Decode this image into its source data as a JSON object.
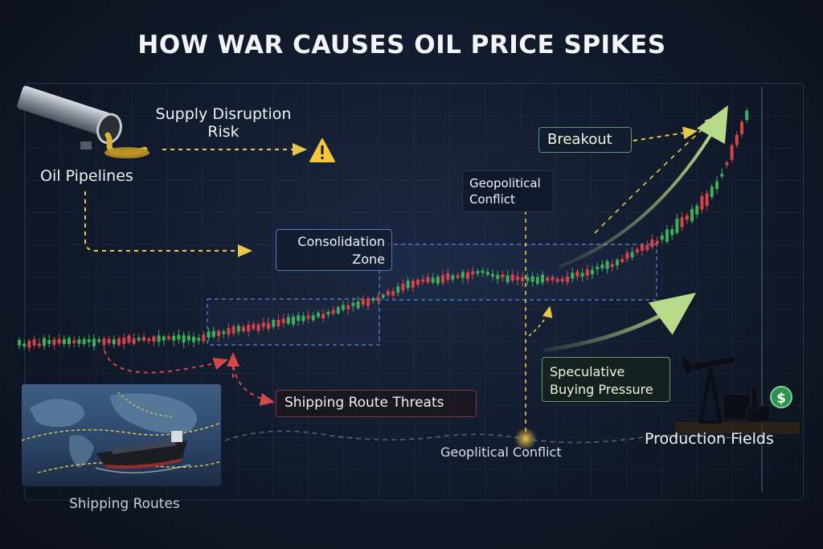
{
  "title": "HOW WAR CAUSES OIL PRICE SPIKES",
  "labels": {
    "supply_disruption": "Supply Disruption\nRisk",
    "oil_pipelines": "Oil Pipelines",
    "breakout": "Breakout",
    "geopolitical_conflict_top": "Geopolitical\nConflict",
    "consolidation_zone": "Consolidation\nZone",
    "speculative_buying": "Speculative\nBuying Pressure",
    "shipping_route_threats": "Shipping Route Threats",
    "geopolitical_conflict_bottom": "Geoplitical Conflict",
    "production_fields": "Production Fields",
    "shipping_routes": "Shipping Routes"
  },
  "icons": {
    "warning": "warning-icon",
    "pipeline": "oil-pipeline-icon",
    "pumpjack": "oil-pumpjack-icon",
    "dollar": "dollar-coin-icon",
    "ship": "tanker-ship-icon",
    "map": "world-map-icon"
  },
  "colors": {
    "bullish": "#3fae5a",
    "bearish": "#d6434b",
    "dashed_yellow": "#e8c84a",
    "dashed_red": "#d4474a",
    "dashed_blue": "#5b86d6",
    "trend_arrow": "#b7d98a"
  }
}
